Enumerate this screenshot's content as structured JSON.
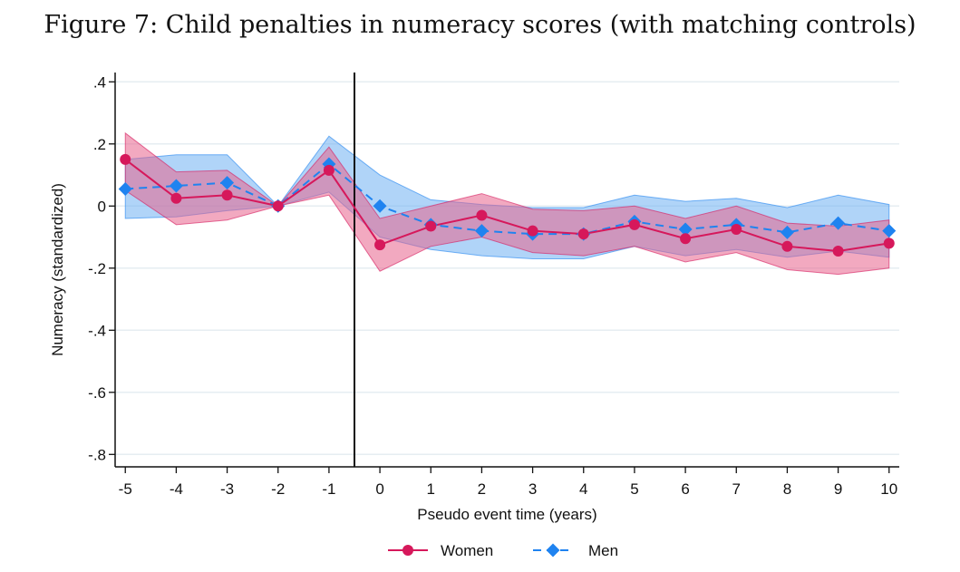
{
  "figure_title": "Figure 7: Child penalties in numeracy scores (with matching controls)",
  "chart_data": {
    "type": "line",
    "title": "Figure 7: Child penalties in numeracy scores (with matching controls)",
    "xlabel": "Pseudo event time (years)",
    "ylabel": "Numeracy (standardized)",
    "x": [
      -5,
      -4,
      -3,
      -2,
      -1,
      0,
      1,
      2,
      3,
      4,
      5,
      6,
      7,
      8,
      9,
      10
    ],
    "x_tick_labels": [
      "-5",
      "-4",
      "-3",
      "-2",
      "-1",
      "0",
      "1",
      "2",
      "3",
      "4",
      "5",
      "6",
      "7",
      "8",
      "9",
      "10"
    ],
    "y_ticks": [
      0.4,
      0.2,
      0,
      -0.2,
      -0.4,
      -0.6,
      -0.8
    ],
    "y_tick_labels": [
      ".4",
      ".2",
      "0",
      "-.2",
      "-.4",
      "-.6",
      "-.8"
    ],
    "xlim": [
      -5.2,
      10.2
    ],
    "ylim": [
      -0.84,
      0.43
    ],
    "grid": true,
    "event_line_x": -0.5,
    "legend_position": "bottom",
    "series": [
      {
        "name": "Women",
        "color": "#d6185b",
        "fill_color": "#e8628c",
        "marker": "circle",
        "line_style": "solid",
        "values": [
          0.15,
          0.025,
          0.035,
          0.0,
          0.115,
          -0.125,
          -0.065,
          -0.03,
          -0.08,
          -0.09,
          -0.06,
          -0.105,
          -0.075,
          -0.13,
          -0.145,
          -0.12
        ],
        "ci_upper": [
          0.235,
          0.11,
          0.115,
          0.0,
          0.19,
          -0.04,
          0.0,
          0.04,
          -0.01,
          -0.015,
          0.0,
          -0.04,
          0.0,
          -0.055,
          -0.065,
          -0.045
        ],
        "ci_lower": [
          0.05,
          -0.06,
          -0.045,
          0.0,
          0.035,
          -0.21,
          -0.13,
          -0.1,
          -0.15,
          -0.16,
          -0.13,
          -0.18,
          -0.15,
          -0.205,
          -0.22,
          -0.2
        ]
      },
      {
        "name": "Men",
        "color": "#1f83f0",
        "fill_color": "#6fb1f2",
        "marker": "diamond",
        "line_style": "dashed",
        "values": [
          0.055,
          0.065,
          0.075,
          0.0,
          0.135,
          0.0,
          -0.06,
          -0.08,
          -0.09,
          -0.09,
          -0.05,
          -0.075,
          -0.06,
          -0.085,
          -0.055,
          -0.08
        ],
        "ci_upper": [
          0.15,
          0.165,
          0.165,
          0.0,
          0.225,
          0.1,
          0.02,
          0.005,
          -0.005,
          -0.005,
          0.035,
          0.015,
          0.025,
          -0.005,
          0.035,
          0.005
        ],
        "ci_lower": [
          -0.04,
          -0.035,
          -0.015,
          0.0,
          0.045,
          -0.1,
          -0.14,
          -0.16,
          -0.17,
          -0.17,
          -0.13,
          -0.16,
          -0.14,
          -0.165,
          -0.145,
          -0.165
        ]
      }
    ]
  }
}
